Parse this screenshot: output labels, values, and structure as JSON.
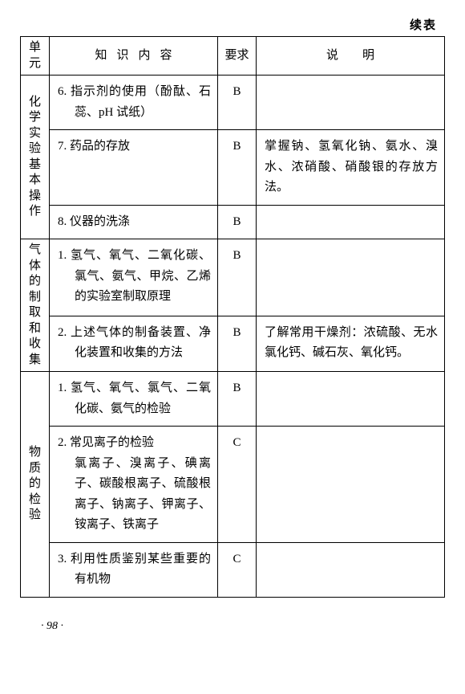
{
  "continued_label": "续表",
  "headers": {
    "unit_l1": "单",
    "unit_l2": "元",
    "content": "知识内容",
    "req": "要求",
    "note": "说明"
  },
  "units": {
    "u1": "化学实验基本操作",
    "u2": "气体的制取和收集",
    "u3": "物质的检验"
  },
  "rows": {
    "r6": {
      "content": "6. 指示剂的使用（酚酞、石蕊、pH 试纸）",
      "req": "B",
      "note": ""
    },
    "r7": {
      "content": "7. 药品的存放",
      "req": "B",
      "note": "掌握钠、氢氧化钠、氨水、溴水、浓硝酸、硝酸银的存放方法。"
    },
    "r8": {
      "content": "8. 仪器的洗涤",
      "req": "B",
      "note": ""
    },
    "g1": {
      "content": "1. 氢气、氧气、二氧化碳、氯气、氨气、甲烷、乙烯的实验室制取原理",
      "req": "B",
      "note": ""
    },
    "g2": {
      "content": "2. 上述气体的制备装置、净化装置和收集的方法",
      "req": "B",
      "note": "了解常用干燥剂：浓硫酸、无水氯化钙、碱石灰、氧化钙。"
    },
    "m1": {
      "content": "1. 氢气、氧气、氯气、二氧化碳、氨气的检验",
      "req": "B",
      "note": ""
    },
    "m2": {
      "content": "2. 常见离子的检验\n氯离子、溴离子、碘离子、碳酸根离子、硫酸根离子、钠离子、钾离子、铵离子、铁离子",
      "req": "C",
      "note": ""
    },
    "m3": {
      "content": "3. 利用性质鉴别某些重要的有机物",
      "req": "C",
      "note": ""
    }
  },
  "page_number": "· 98 ·"
}
